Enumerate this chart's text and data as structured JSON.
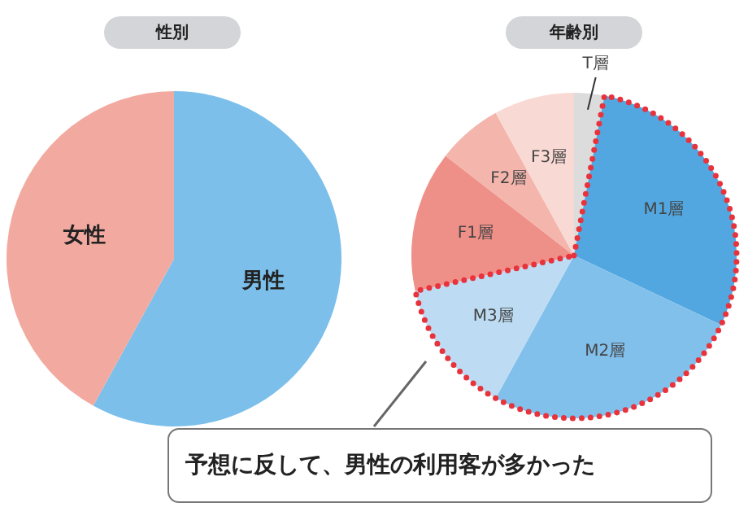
{
  "chart_data": [
    {
      "type": "pie",
      "title": "性別",
      "categories": [
        "男性",
        "女性"
      ],
      "values": [
        58,
        42
      ],
      "colors": [
        "#7bbfea",
        "#f2aaa0"
      ],
      "data_labels": false,
      "legend": false
    },
    {
      "type": "pie",
      "title": "年齢別",
      "categories": [
        "T層",
        "M1層",
        "M2層",
        "M3層",
        "F1層",
        "F2層",
        "F3層"
      ],
      "values": [
        3,
        29,
        26,
        13.5,
        14,
        6.5,
        8
      ],
      "colors": [
        "#dcdcdc",
        "#52a7e0",
        "#82c0ec",
        "#bddcf3",
        "#ef9088",
        "#f4b5ad",
        "#f9d9d3"
      ],
      "legend": false,
      "annotations": [
        "予想に反して、男性の利用客が多かった"
      ]
    }
  ]
}
